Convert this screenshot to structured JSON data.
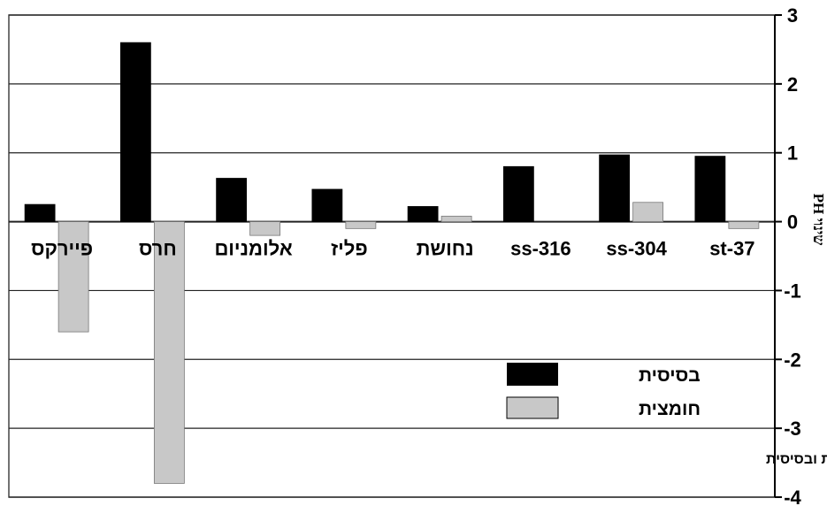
{
  "chart_data": {
    "type": "bar",
    "categories": [
      "st-37",
      "ss-304",
      "ss-316",
      "נחושת",
      "פליז",
      "אלומניום",
      "חרס",
      "פיירקס"
    ],
    "series": [
      {
        "name": "בסיסית",
        "color": "#000000",
        "values": [
          0.95,
          0.97,
          0.8,
          0.22,
          0.47,
          0.63,
          2.6,
          0.25
        ]
      },
      {
        "name": "חומצית",
        "color": "#c8c8c8",
        "values": [
          -0.1,
          0.28,
          0.0,
          0.08,
          -0.1,
          -0.2,
          -3.8,
          -1.6
        ]
      }
    ],
    "ylabel": "שינוי PH",
    "ylim": [
      -4,
      3
    ],
    "yticks": [
      3,
      2,
      1,
      0,
      -1,
      -2,
      -3,
      -4
    ],
    "grid": true,
    "legend_position": "bottom-right",
    "caption": "שינוי PH לאחר חשיפה לתמיסה חומצית ובסיסית"
  }
}
